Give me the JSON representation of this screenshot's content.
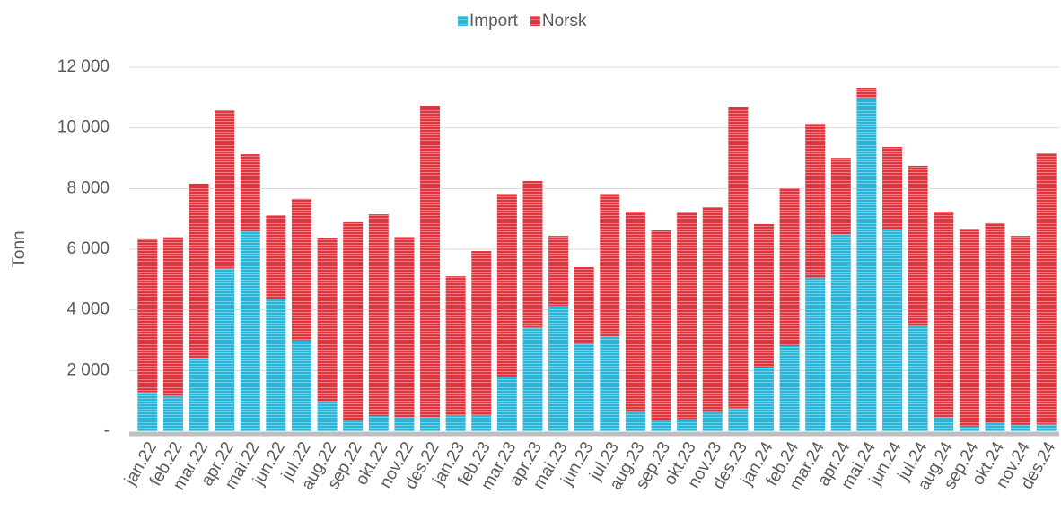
{
  "chart_data": {
    "type": "stacked_bar",
    "y_axis_label": "Tonn",
    "categories": [
      "jan.22",
      "feb.22",
      "mar.22",
      "apr.22",
      "mai.22",
      "jun.22",
      "jul.22",
      "aug.22",
      "sep.22",
      "okt.22",
      "nov.22",
      "des.22",
      "jan.23",
      "feb.23",
      "mar.23",
      "apr.23",
      "mai.23",
      "jun.23",
      "jul.23",
      "aug.23",
      "sep.23",
      "okt.23",
      "nov.23",
      "des.23",
      "jan.24",
      "feb.24",
      "mar.24",
      "apr.24",
      "mai.24",
      "jun.24",
      "jul.24",
      "aug.24",
      "sep.24",
      "okt.24",
      "nov.24",
      "des.24"
    ],
    "series": [
      {
        "name": "Import",
        "color": "#29b5d8",
        "values": [
          1300,
          1150,
          2420,
          5380,
          6590,
          4350,
          2990,
          980,
          350,
          500,
          470,
          470,
          530,
          530,
          1800,
          3430,
          4140,
          2900,
          3130,
          620,
          350,
          410,
          620,
          770,
          2100,
          2810,
          5050,
          6500,
          11000,
          6650,
          3460,
          470,
          150,
          270,
          210,
          240
        ]
      },
      {
        "name": "Norsk",
        "color": "#e0353f",
        "values": [
          5030,
          5250,
          5740,
          5200,
          2540,
          2770,
          4670,
          5380,
          6540,
          6650,
          5940,
          10260,
          4580,
          5410,
          6030,
          4820,
          2300,
          2510,
          4700,
          6620,
          6270,
          6800,
          6770,
          9930,
          4730,
          5200,
          5090,
          2510,
          320,
          2720,
          5290,
          6770,
          6530,
          6590,
          6230,
          8920
        ]
      }
    ],
    "ylim": [
      0,
      12000
    ],
    "yticks": [
      {
        "value": 0,
        "label": "-"
      },
      {
        "value": 2000,
        "label": "2 000"
      },
      {
        "value": 4000,
        "label": "4 000"
      },
      {
        "value": 6000,
        "label": "6 000"
      },
      {
        "value": 8000,
        "label": "8 000"
      },
      {
        "value": 10000,
        "label": "10 000"
      },
      {
        "value": 12000,
        "label": "12 000"
      }
    ],
    "grid": true,
    "legend": "top"
  }
}
